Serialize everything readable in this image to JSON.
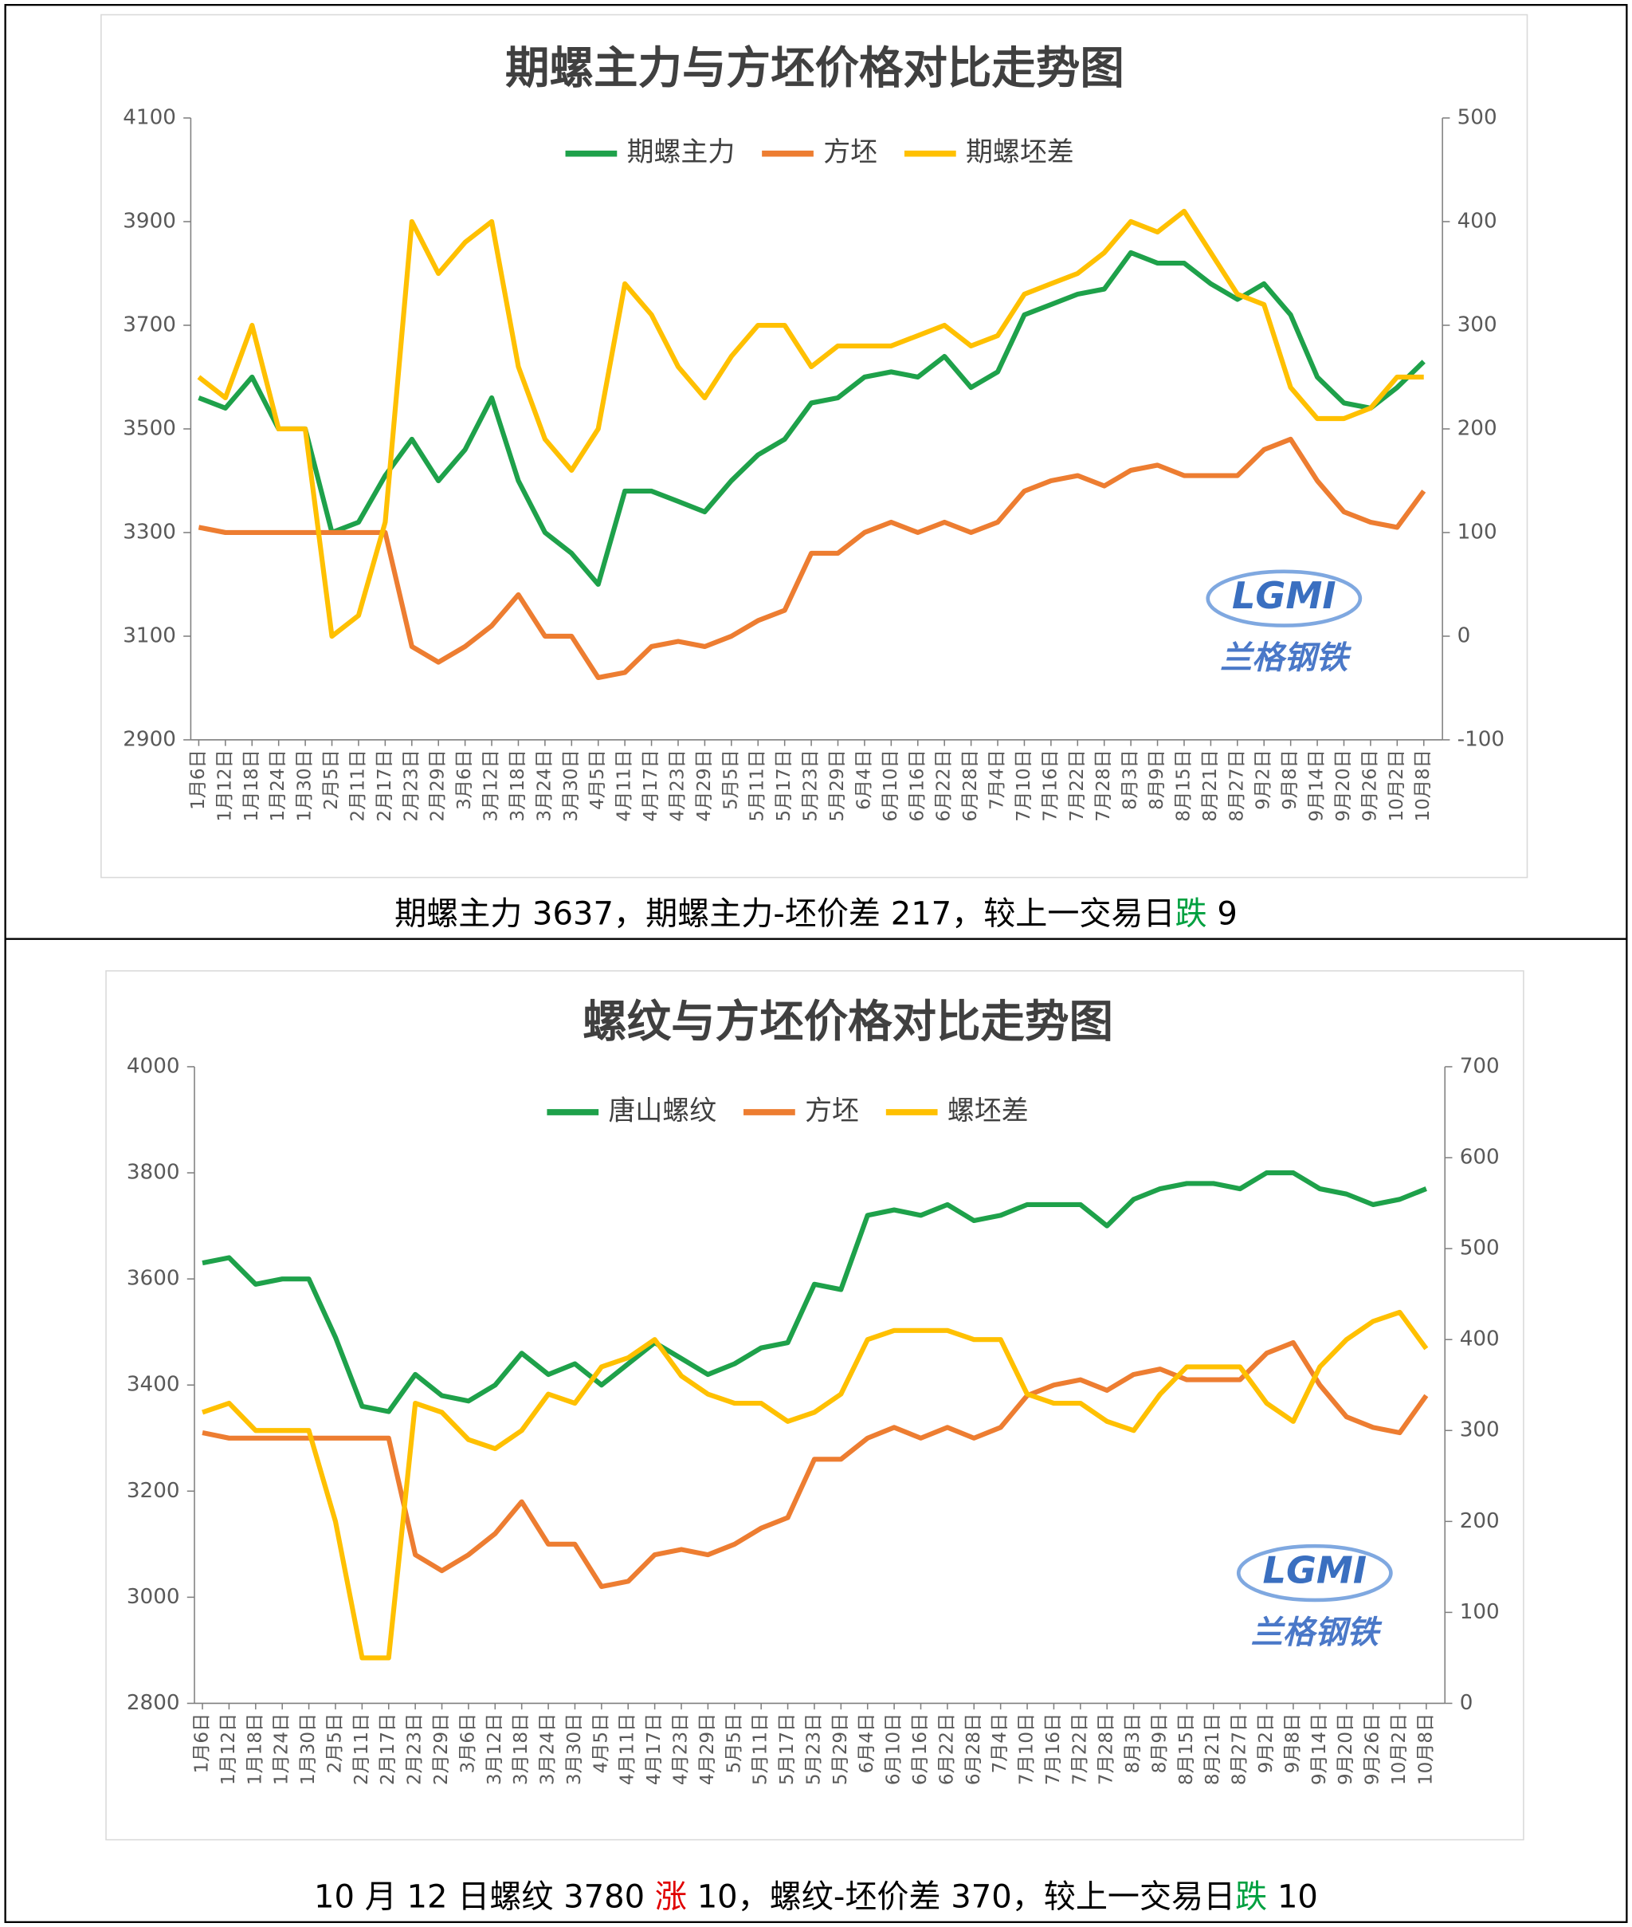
{
  "chart_data": [
    {
      "type": "line",
      "title": "期螺主力与方坯价格对比走势图",
      "categories": [
        "1月6日",
        "1月12日",
        "1月18日",
        "1月24日",
        "1月30日",
        "2月5日",
        "2月11日",
        "2月17日",
        "2月23日",
        "2月29日",
        "3月6日",
        "3月12日",
        "3月18日",
        "3月24日",
        "3月30日",
        "4月5日",
        "4月11日",
        "4月17日",
        "4月23日",
        "4月29日",
        "5月5日",
        "5月11日",
        "5月17日",
        "5月23日",
        "5月29日",
        "6月4日",
        "6月10日",
        "6月16日",
        "6月22日",
        "6月28日",
        "7月4日",
        "7月10日",
        "7月16日",
        "7月22日",
        "7月28日",
        "8月3日",
        "8月9日",
        "8月15日",
        "8月21日",
        "8月27日",
        "9月2日",
        "9月8日",
        "9月14日",
        "9月20日",
        "9月26日",
        "10月2日",
        "10月8日"
      ],
      "series": [
        {
          "name": "期螺主力",
          "color": "#1ea14a",
          "values": [
            3560,
            3540,
            3600,
            3500,
            3500,
            3300,
            3320,
            3410,
            3480,
            3400,
            3460,
            3560,
            3400,
            3300,
            3260,
            3200,
            3380,
            3380,
            3360,
            3340,
            3400,
            3450,
            3480,
            3550,
            3560,
            3600,
            3610,
            3600,
            3640,
            3580,
            3610,
            3720,
            3740,
            3760,
            3770,
            3840,
            3820,
            3820,
            3780,
            3750,
            3780,
            3720,
            3600,
            3550,
            3540,
            3580,
            3630
          ]
        },
        {
          "name": "方坯",
          "color": "#ed7d31",
          "values": [
            3310,
            3300,
            3300,
            3300,
            3300,
            3300,
            3300,
            3300,
            3080,
            3050,
            3080,
            3120,
            3180,
            3100,
            3100,
            3020,
            3030,
            3080,
            3090,
            3080,
            3100,
            3130,
            3150,
            3260,
            3260,
            3300,
            3320,
            3300,
            3320,
            3300,
            3320,
            3380,
            3400,
            3410,
            3390,
            3420,
            3430,
            3410,
            3410,
            3410,
            3460,
            3480,
            3400,
            3340,
            3320,
            3310,
            3380
          ]
        },
        {
          "name": "期螺坯差",
          "color": "#ffc000",
          "axis": "y2",
          "values": [
            250,
            230,
            300,
            200,
            200,
            0,
            20,
            110,
            400,
            350,
            380,
            400,
            260,
            190,
            160,
            200,
            340,
            310,
            260,
            230,
            270,
            300,
            300,
            260,
            280,
            280,
            280,
            290,
            300,
            280,
            290,
            330,
            340,
            350,
            370,
            400,
            390,
            410,
            370,
            330,
            320,
            240,
            210,
            210,
            220,
            250,
            250
          ]
        }
      ],
      "ylim": [
        2900,
        4100
      ],
      "yticks": [
        2900,
        3100,
        3300,
        3500,
        3700,
        3900,
        4100
      ],
      "y2lim": [
        -100,
        500
      ],
      "y2ticks": [
        -100,
        0,
        100,
        200,
        300,
        400,
        500
      ],
      "watermark": [
        "LGMI",
        "兰格钢铁"
      ],
      "caption": [
        {
          "text": "期螺主力 3637，期螺主力-坯价差 217，较上一交易日",
          "color": "#000000"
        },
        {
          "text": "跌",
          "color": "#00a040"
        },
        {
          "text": " 9",
          "color": "#000000"
        }
      ]
    },
    {
      "type": "line",
      "title": "螺纹与方坯价格对比走势图",
      "categories": [
        "1月6日",
        "1月12日",
        "1月18日",
        "1月24日",
        "1月30日",
        "2月5日",
        "2月11日",
        "2月17日",
        "2月23日",
        "2月29日",
        "3月6日",
        "3月12日",
        "3月18日",
        "3月24日",
        "3月30日",
        "4月5日",
        "4月11日",
        "4月17日",
        "4月23日",
        "4月29日",
        "5月5日",
        "5月11日",
        "5月17日",
        "5月23日",
        "5月29日",
        "6月4日",
        "6月10日",
        "6月16日",
        "6月22日",
        "6月28日",
        "7月4日",
        "7月10日",
        "7月16日",
        "7月22日",
        "7月28日",
        "8月3日",
        "8月9日",
        "8月15日",
        "8月21日",
        "8月27日",
        "9月2日",
        "9月8日",
        "9月14日",
        "9月20日",
        "9月26日",
        "10月2日",
        "10月8日"
      ],
      "series": [
        {
          "name": "唐山螺纹",
          "color": "#1ea14a",
          "values": [
            3630,
            3640,
            3590,
            3600,
            3600,
            3490,
            3360,
            3350,
            3420,
            3380,
            3370,
            3400,
            3460,
            3420,
            3440,
            3400,
            3440,
            3480,
            3450,
            3420,
            3440,
            3470,
            3480,
            3590,
            3580,
            3720,
            3730,
            3720,
            3740,
            3710,
            3720,
            3740,
            3740,
            3740,
            3700,
            3750,
            3770,
            3780,
            3780,
            3770,
            3800,
            3800,
            3770,
            3760,
            3740,
            3750,
            3770
          ]
        },
        {
          "name": "方坯",
          "color": "#ed7d31",
          "values": [
            3310,
            3300,
            3300,
            3300,
            3300,
            3300,
            3300,
            3300,
            3080,
            3050,
            3080,
            3120,
            3180,
            3100,
            3100,
            3020,
            3030,
            3080,
            3090,
            3080,
            3100,
            3130,
            3150,
            3260,
            3260,
            3300,
            3320,
            3300,
            3320,
            3300,
            3320,
            3380,
            3400,
            3410,
            3390,
            3420,
            3430,
            3410,
            3410,
            3410,
            3460,
            3480,
            3400,
            3340,
            3320,
            3310,
            3380
          ]
        },
        {
          "name": "螺坯差",
          "color": "#ffc000",
          "axis": "y2",
          "values": [
            320,
            330,
            300,
            300,
            300,
            200,
            50,
            50,
            330,
            320,
            290,
            280,
            300,
            340,
            330,
            370,
            380,
            400,
            360,
            340,
            330,
            330,
            310,
            320,
            340,
            400,
            410,
            410,
            410,
            400,
            400,
            340,
            330,
            330,
            310,
            300,
            340,
            370,
            370,
            370,
            330,
            310,
            370,
            400,
            420,
            430,
            390
          ]
        }
      ],
      "ylim": [
        2800,
        4000
      ],
      "yticks": [
        2800,
        3000,
        3200,
        3400,
        3600,
        3800,
        4000
      ],
      "y2lim": [
        0,
        700
      ],
      "y2ticks": [
        0,
        100,
        200,
        300,
        400,
        500,
        600,
        700
      ],
      "watermark": [
        "LGMI",
        "兰格钢铁"
      ],
      "caption": [
        {
          "text": "10 月 12 日螺纹 3780 ",
          "color": "#000000"
        },
        {
          "text": "涨",
          "color": "#e00000"
        },
        {
          "text": " 10，螺纹-坯价差 370，较上一交易日",
          "color": "#000000"
        },
        {
          "text": "跌",
          "color": "#00a040"
        },
        {
          "text": " 10",
          "color": "#000000"
        }
      ]
    }
  ]
}
